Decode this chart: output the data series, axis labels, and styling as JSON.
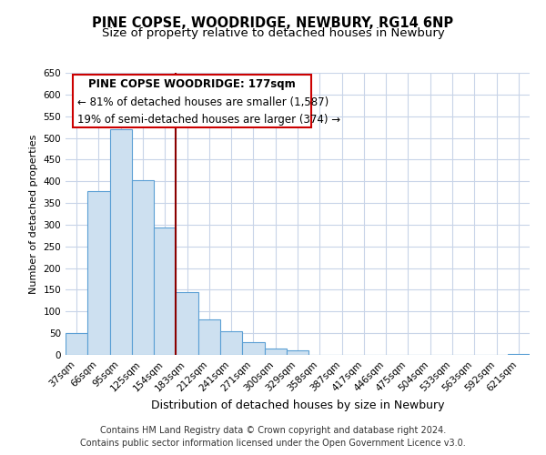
{
  "title": "PINE COPSE, WOODRIDGE, NEWBURY, RG14 6NP",
  "subtitle": "Size of property relative to detached houses in Newbury",
  "xlabel": "Distribution of detached houses by size in Newbury",
  "ylabel": "Number of detached properties",
  "bin_labels": [
    "37sqm",
    "66sqm",
    "95sqm",
    "125sqm",
    "154sqm",
    "183sqm",
    "212sqm",
    "241sqm",
    "271sqm",
    "300sqm",
    "329sqm",
    "358sqm",
    "387sqm",
    "417sqm",
    "446sqm",
    "475sqm",
    "504sqm",
    "533sqm",
    "563sqm",
    "592sqm",
    "621sqm"
  ],
  "bin_counts": [
    50,
    377,
    519,
    403,
    293,
    145,
    82,
    55,
    30,
    15,
    11,
    0,
    0,
    0,
    0,
    0,
    0,
    0,
    0,
    0,
    3
  ],
  "bar_color": "#cde0f0",
  "bar_edge_color": "#5a9fd4",
  "grid_color": "#c8d4e8",
  "vline_color": "#8b0000",
  "annotation_title": "PINE COPSE WOODRIDGE: 177sqm",
  "annotation_line1": "← 81% of detached houses are smaller (1,587)",
  "annotation_line2": "19% of semi-detached houses are larger (374) →",
  "annotation_box_color": "#ffffff",
  "annotation_box_edge_color": "#cc0000",
  "ylim": [
    0,
    650
  ],
  "yticks": [
    0,
    50,
    100,
    150,
    200,
    250,
    300,
    350,
    400,
    450,
    500,
    550,
    600,
    650
  ],
  "footnote1": "Contains HM Land Registry data © Crown copyright and database right 2024.",
  "footnote2": "Contains public sector information licensed under the Open Government Licence v3.0.",
  "title_fontsize": 10.5,
  "subtitle_fontsize": 9.5,
  "xlabel_fontsize": 9,
  "ylabel_fontsize": 8,
  "tick_fontsize": 7.5,
  "annotation_title_fontsize": 8.5,
  "annotation_line_fontsize": 8.5,
  "footnote_fontsize": 7
}
